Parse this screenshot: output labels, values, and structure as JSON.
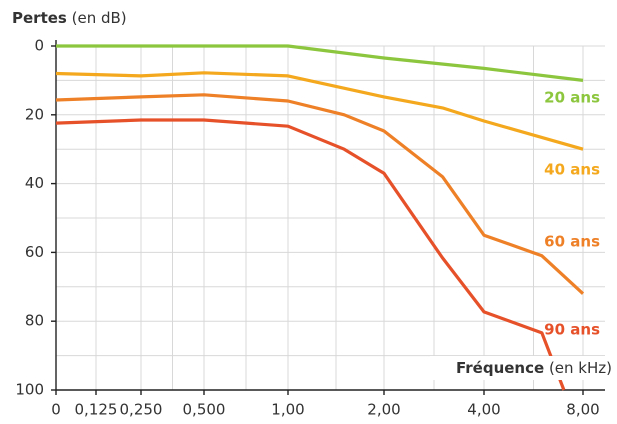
{
  "chart_data": {
    "type": "line",
    "y_label": "Pertes",
    "y_unit": "(en dB)",
    "x_label": "Fréquence",
    "x_unit": "(en kHz)",
    "ylim": [
      0,
      100
    ],
    "yticks": [
      0,
      20,
      40,
      60,
      80,
      100
    ],
    "y_inverted": true,
    "xlim": [
      0,
      8
    ],
    "xticks": [
      0,
      {
        "value": 0.125,
        "label": "0,125"
      },
      {
        "value": 0.25,
        "label": "0,250"
      },
      {
        "value": 0.5,
        "label": "0,500"
      },
      {
        "value": 1,
        "label": "1,00"
      },
      {
        "value": 2,
        "label": "2,00"
      },
      {
        "value": 4,
        "label": "4,00"
      },
      {
        "value": 8,
        "label": "8,00"
      }
    ],
    "grid": true,
    "series": [
      {
        "name": "20 ans",
        "color": "#8cc63e",
        "x": [
          0,
          1,
          2,
          4,
          8
        ],
        "values": [
          0,
          0,
          3.5,
          6.5,
          10
        ]
      },
      {
        "name": "40 ans",
        "color": "#f4a81d",
        "x": [
          0,
          0.25,
          0.5,
          1,
          2,
          3,
          4,
          8
        ],
        "values": [
          8,
          8.7,
          7.8,
          8.7,
          14.8,
          18,
          21.8,
          30
        ]
      },
      {
        "name": "60 ans",
        "color": "#ee8027",
        "x": [
          0,
          0.25,
          0.5,
          1,
          1.5,
          2,
          3,
          4,
          6,
          8
        ],
        "values": [
          15.7,
          14.8,
          14.2,
          16,
          20,
          24.7,
          38,
          55,
          61,
          72
        ]
      },
      {
        "name": "90 ans",
        "color": "#e6512a",
        "x": [
          0,
          0.25,
          0.5,
          1,
          1.5,
          2,
          3,
          4,
          6,
          7
        ],
        "values": [
          22.4,
          21.5,
          21.5,
          23.3,
          30,
          37,
          61.6,
          77.3,
          83.4,
          100
        ]
      }
    ]
  }
}
